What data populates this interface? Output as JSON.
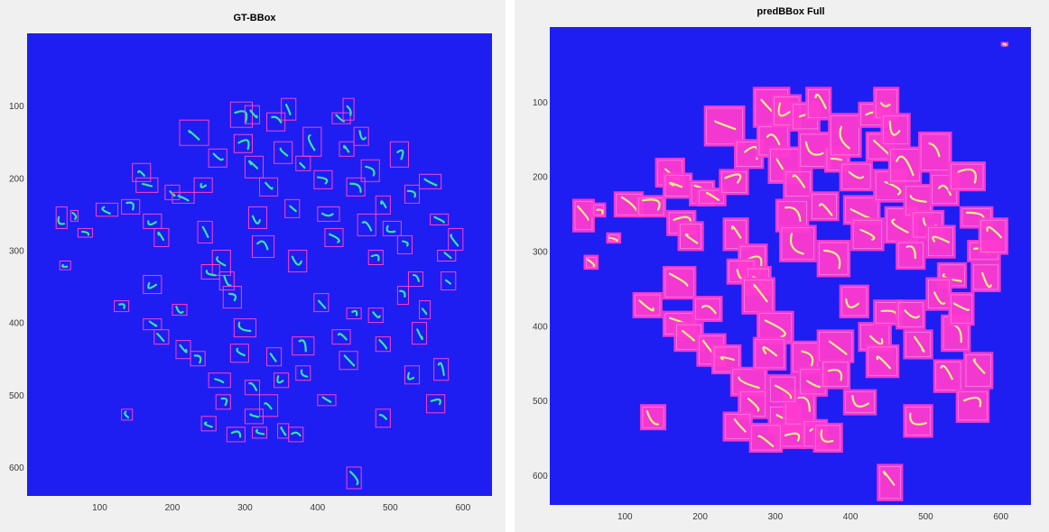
{
  "figure": {
    "background": "#ffffff",
    "axes_background": "#f0f0f0"
  },
  "chart_data": [
    {
      "type": "heatmap",
      "title": "GT-BBox",
      "xlabel": "",
      "ylabel": "",
      "xlim": [
        0,
        640
      ],
      "ylim": [
        640,
        0
      ],
      "x_ticks": [
        100,
        200,
        300,
        400,
        500,
        600
      ],
      "x_tick_labels": [
        "100",
        "200",
        "300",
        "400",
        "500",
        "600"
      ],
      "y_ticks": [
        100,
        200,
        300,
        400,
        500,
        600
      ],
      "y_tick_labels": [
        "100",
        "200",
        "300",
        "400",
        "500",
        "600"
      ],
      "image_background_color": "#1e1ef2",
      "worm_color": "#33e6a0",
      "box_color": "#ff40d0",
      "boxes": [
        [
          40,
          240,
          15,
          30
        ],
        [
          60,
          245,
          10,
          15
        ],
        [
          70,
          270,
          20,
          12
        ],
        [
          45,
          315,
          15,
          12
        ],
        [
          95,
          235,
          30,
          18
        ],
        [
          130,
          230,
          25,
          20
        ],
        [
          145,
          180,
          25,
          25
        ],
        [
          150,
          200,
          30,
          20
        ],
        [
          160,
          250,
          25,
          20
        ],
        [
          175,
          270,
          20,
          25
        ],
        [
          190,
          210,
          20,
          20
        ],
        [
          200,
          220,
          30,
          15
        ],
        [
          210,
          120,
          40,
          35
        ],
        [
          230,
          200,
          25,
          20
        ],
        [
          235,
          260,
          20,
          30
        ],
        [
          250,
          160,
          25,
          25
        ],
        [
          255,
          300,
          25,
          35
        ],
        [
          240,
          320,
          25,
          20
        ],
        [
          265,
          330,
          20,
          25
        ],
        [
          280,
          95,
          30,
          35
        ],
        [
          285,
          140,
          25,
          25
        ],
        [
          300,
          100,
          20,
          25
        ],
        [
          300,
          170,
          25,
          30
        ],
        [
          305,
          240,
          25,
          30
        ],
        [
          310,
          280,
          30,
          30
        ],
        [
          320,
          200,
          25,
          25
        ],
        [
          330,
          110,
          25,
          25
        ],
        [
          340,
          150,
          25,
          30
        ],
        [
          350,
          90,
          20,
          30
        ],
        [
          355,
          230,
          20,
          25
        ],
        [
          360,
          300,
          25,
          30
        ],
        [
          370,
          170,
          20,
          20
        ],
        [
          380,
          130,
          25,
          40
        ],
        [
          395,
          190,
          25,
          25
        ],
        [
          400,
          240,
          30,
          20
        ],
        [
          410,
          270,
          25,
          25
        ],
        [
          420,
          110,
          25,
          15
        ],
        [
          430,
          150,
          20,
          20
        ],
        [
          435,
          90,
          15,
          30
        ],
        [
          440,
          200,
          25,
          25
        ],
        [
          450,
          130,
          20,
          25
        ],
        [
          455,
          250,
          25,
          30
        ],
        [
          460,
          175,
          25,
          30
        ],
        [
          470,
          300,
          20,
          20
        ],
        [
          480,
          225,
          20,
          25
        ],
        [
          490,
          260,
          25,
          20
        ],
        [
          500,
          150,
          25,
          35
        ],
        [
          510,
          280,
          20,
          25
        ],
        [
          520,
          210,
          20,
          25
        ],
        [
          525,
          330,
          20,
          20
        ],
        [
          540,
          195,
          30,
          20
        ],
        [
          555,
          250,
          25,
          15
        ],
        [
          565,
          300,
          25,
          15
        ],
        [
          570,
          330,
          20,
          25
        ],
        [
          580,
          270,
          20,
          30
        ],
        [
          120,
          370,
          20,
          15
        ],
        [
          160,
          335,
          25,
          25
        ],
        [
          160,
          395,
          25,
          15
        ],
        [
          175,
          410,
          20,
          20
        ],
        [
          200,
          375,
          20,
          15
        ],
        [
          205,
          425,
          20,
          25
        ],
        [
          225,
          440,
          20,
          20
        ],
        [
          250,
          470,
          30,
          20
        ],
        [
          260,
          500,
          20,
          20
        ],
        [
          270,
          350,
          25,
          30
        ],
        [
          285,
          395,
          30,
          25
        ],
        [
          280,
          430,
          25,
          25
        ],
        [
          300,
          520,
          25,
          20
        ],
        [
          310,
          545,
          20,
          15
        ],
        [
          320,
          500,
          25,
          30
        ],
        [
          330,
          435,
          20,
          25
        ],
        [
          340,
          470,
          20,
          20
        ],
        [
          345,
          540,
          15,
          20
        ],
        [
          365,
          420,
          30,
          25
        ],
        [
          370,
          460,
          20,
          20
        ],
        [
          395,
          360,
          20,
          25
        ],
        [
          400,
          500,
          25,
          15
        ],
        [
          420,
          410,
          25,
          20
        ],
        [
          430,
          440,
          25,
          25
        ],
        [
          440,
          380,
          20,
          15
        ],
        [
          470,
          380,
          20,
          20
        ],
        [
          480,
          420,
          20,
          20
        ],
        [
          480,
          520,
          20,
          25
        ],
        [
          510,
          350,
          15,
          25
        ],
        [
          520,
          460,
          20,
          25
        ],
        [
          530,
          400,
          20,
          30
        ],
        [
          540,
          370,
          15,
          25
        ],
        [
          550,
          500,
          25,
          25
        ],
        [
          560,
          450,
          20,
          30
        ],
        [
          440,
          600,
          20,
          30
        ],
        [
          130,
          520,
          15,
          15
        ],
        [
          240,
          530,
          20,
          20
        ],
        [
          275,
          545,
          25,
          20
        ],
        [
          360,
          545,
          20,
          20
        ],
        [
          300,
          480,
          20,
          20
        ]
      ]
    },
    {
      "type": "heatmap",
      "title": "predBBox Full",
      "xlabel": "",
      "ylabel": "",
      "xlim": [
        0,
        640
      ],
      "ylim": [
        640,
        0
      ],
      "x_ticks": [
        100,
        200,
        300,
        400,
        500,
        600
      ],
      "x_tick_labels": [
        "100",
        "200",
        "300",
        "400",
        "500",
        "600"
      ],
      "y_ticks": [
        100,
        200,
        300,
        400,
        500,
        600
      ],
      "y_tick_labels": [
        "100",
        "200",
        "300",
        "400",
        "500",
        "600"
      ],
      "image_background_color": "#1e1ef2",
      "worm_color": "#e8f080",
      "box_color": "#ff3ad0",
      "boxes": [
        [
          30,
          230,
          30,
          45
        ],
        [
          55,
          235,
          20,
          20
        ],
        [
          75,
          275,
          20,
          15
        ],
        [
          45,
          305,
          20,
          20
        ],
        [
          85,
          220,
          40,
          35
        ],
        [
          115,
          225,
          40,
          30
        ],
        [
          140,
          175,
          40,
          40
        ],
        [
          150,
          195,
          40,
          35
        ],
        [
          155,
          245,
          40,
          35
        ],
        [
          170,
          260,
          35,
          40
        ],
        [
          185,
          205,
          35,
          35
        ],
        [
          195,
          215,
          40,
          25
        ],
        [
          205,
          105,
          55,
          55
        ],
        [
          225,
          190,
          40,
          35
        ],
        [
          230,
          255,
          35,
          45
        ],
        [
          245,
          150,
          40,
          40
        ],
        [
          250,
          290,
          40,
          50
        ],
        [
          235,
          310,
          40,
          35
        ],
        [
          260,
          320,
          35,
          40
        ],
        [
          270,
          80,
          50,
          55
        ],
        [
          275,
          130,
          45,
          45
        ],
        [
          295,
          90,
          40,
          45
        ],
        [
          290,
          160,
          45,
          50
        ],
        [
          300,
          230,
          45,
          45
        ],
        [
          305,
          265,
          50,
          50
        ],
        [
          310,
          190,
          40,
          40
        ],
        [
          320,
          100,
          40,
          40
        ],
        [
          330,
          140,
          45,
          50
        ],
        [
          340,
          80,
          35,
          45
        ],
        [
          345,
          220,
          40,
          40
        ],
        [
          355,
          285,
          45,
          50
        ],
        [
          365,
          160,
          35,
          35
        ],
        [
          370,
          115,
          45,
          60
        ],
        [
          385,
          180,
          45,
          40
        ],
        [
          390,
          225,
          50,
          40
        ],
        [
          400,
          255,
          45,
          45
        ],
        [
          410,
          100,
          45,
          35
        ],
        [
          420,
          140,
          40,
          40
        ],
        [
          430,
          80,
          35,
          45
        ],
        [
          430,
          190,
          45,
          45
        ],
        [
          440,
          115,
          40,
          45
        ],
        [
          445,
          240,
          45,
          50
        ],
        [
          450,
          160,
          45,
          50
        ],
        [
          460,
          285,
          40,
          40
        ],
        [
          470,
          210,
          40,
          45
        ],
        [
          480,
          245,
          45,
          40
        ],
        [
          490,
          140,
          45,
          55
        ],
        [
          500,
          265,
          40,
          45
        ],
        [
          505,
          195,
          40,
          45
        ],
        [
          515,
          315,
          40,
          35
        ],
        [
          530,
          180,
          50,
          40
        ],
        [
          545,
          240,
          45,
          30
        ],
        [
          555,
          285,
          45,
          30
        ],
        [
          560,
          315,
          40,
          40
        ],
        [
          570,
          255,
          40,
          50
        ],
        [
          110,
          355,
          40,
          35
        ],
        [
          150,
          320,
          45,
          45
        ],
        [
          150,
          380,
          45,
          35
        ],
        [
          165,
          395,
          40,
          40
        ],
        [
          190,
          360,
          40,
          35
        ],
        [
          195,
          410,
          40,
          45
        ],
        [
          215,
          425,
          40,
          40
        ],
        [
          240,
          455,
          50,
          40
        ],
        [
          250,
          485,
          40,
          40
        ],
        [
          255,
          335,
          45,
          50
        ],
        [
          275,
          380,
          50,
          45
        ],
        [
          270,
          415,
          45,
          45
        ],
        [
          290,
          505,
          45,
          40
        ],
        [
          300,
          530,
          40,
          35
        ],
        [
          310,
          485,
          45,
          50
        ],
        [
          320,
          420,
          40,
          45
        ],
        [
          330,
          455,
          40,
          40
        ],
        [
          335,
          525,
          35,
          40
        ],
        [
          355,
          405,
          50,
          45
        ],
        [
          360,
          445,
          40,
          40
        ],
        [
          385,
          345,
          40,
          45
        ],
        [
          390,
          485,
          45,
          35
        ],
        [
          410,
          395,
          45,
          40
        ],
        [
          420,
          425,
          45,
          45
        ],
        [
          430,
          365,
          40,
          35
        ],
        [
          460,
          365,
          40,
          40
        ],
        [
          470,
          405,
          40,
          40
        ],
        [
          470,
          505,
          40,
          45
        ],
        [
          500,
          335,
          35,
          45
        ],
        [
          510,
          445,
          40,
          45
        ],
        [
          520,
          385,
          40,
          50
        ],
        [
          530,
          355,
          35,
          45
        ],
        [
          540,
          485,
          45,
          45
        ],
        [
          550,
          435,
          40,
          50
        ],
        [
          435,
          585,
          35,
          50
        ],
        [
          120,
          505,
          35,
          35
        ],
        [
          230,
          515,
          40,
          40
        ],
        [
          265,
          530,
          45,
          40
        ],
        [
          350,
          530,
          40,
          40
        ],
        [
          290,
          465,
          40,
          40
        ],
        [
          600,
          20,
          10,
          6
        ]
      ]
    }
  ]
}
